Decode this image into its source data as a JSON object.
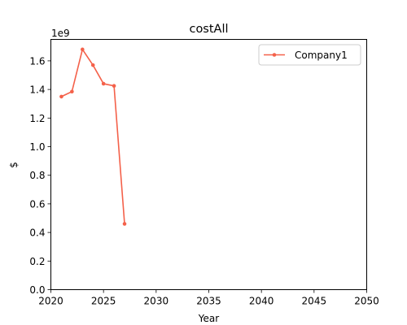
{
  "chart_data": {
    "type": "line",
    "title": "costAll",
    "xlabel": "Year",
    "ylabel": "$",
    "y_offset_label": "1e9",
    "xlim": [
      2020,
      2050
    ],
    "ylim": [
      0.0,
      1.75
    ],
    "x_ticks": [
      2020,
      2025,
      2030,
      2035,
      2040,
      2045,
      2050
    ],
    "x_tick_labels": [
      "2020",
      "2025",
      "2030",
      "2035",
      "2040",
      "2045",
      "2050"
    ],
    "y_ticks": [
      0.0,
      0.2,
      0.4,
      0.6,
      0.8,
      1.0,
      1.2,
      1.4,
      1.6
    ],
    "y_tick_labels": [
      "0.0",
      "0.2",
      "0.4",
      "0.6",
      "0.8",
      "1.0",
      "1.2",
      "1.4",
      "1.6"
    ],
    "grid": false,
    "legend_position": "top-right",
    "series": [
      {
        "name": "Company1",
        "color": "#f4614a",
        "x": [
          2021,
          2022,
          2023,
          2024,
          2025,
          2026,
          2027
        ],
        "y": [
          1.35,
          1.385,
          1.68,
          1.57,
          1.44,
          1.425,
          0.46
        ]
      }
    ]
  }
}
